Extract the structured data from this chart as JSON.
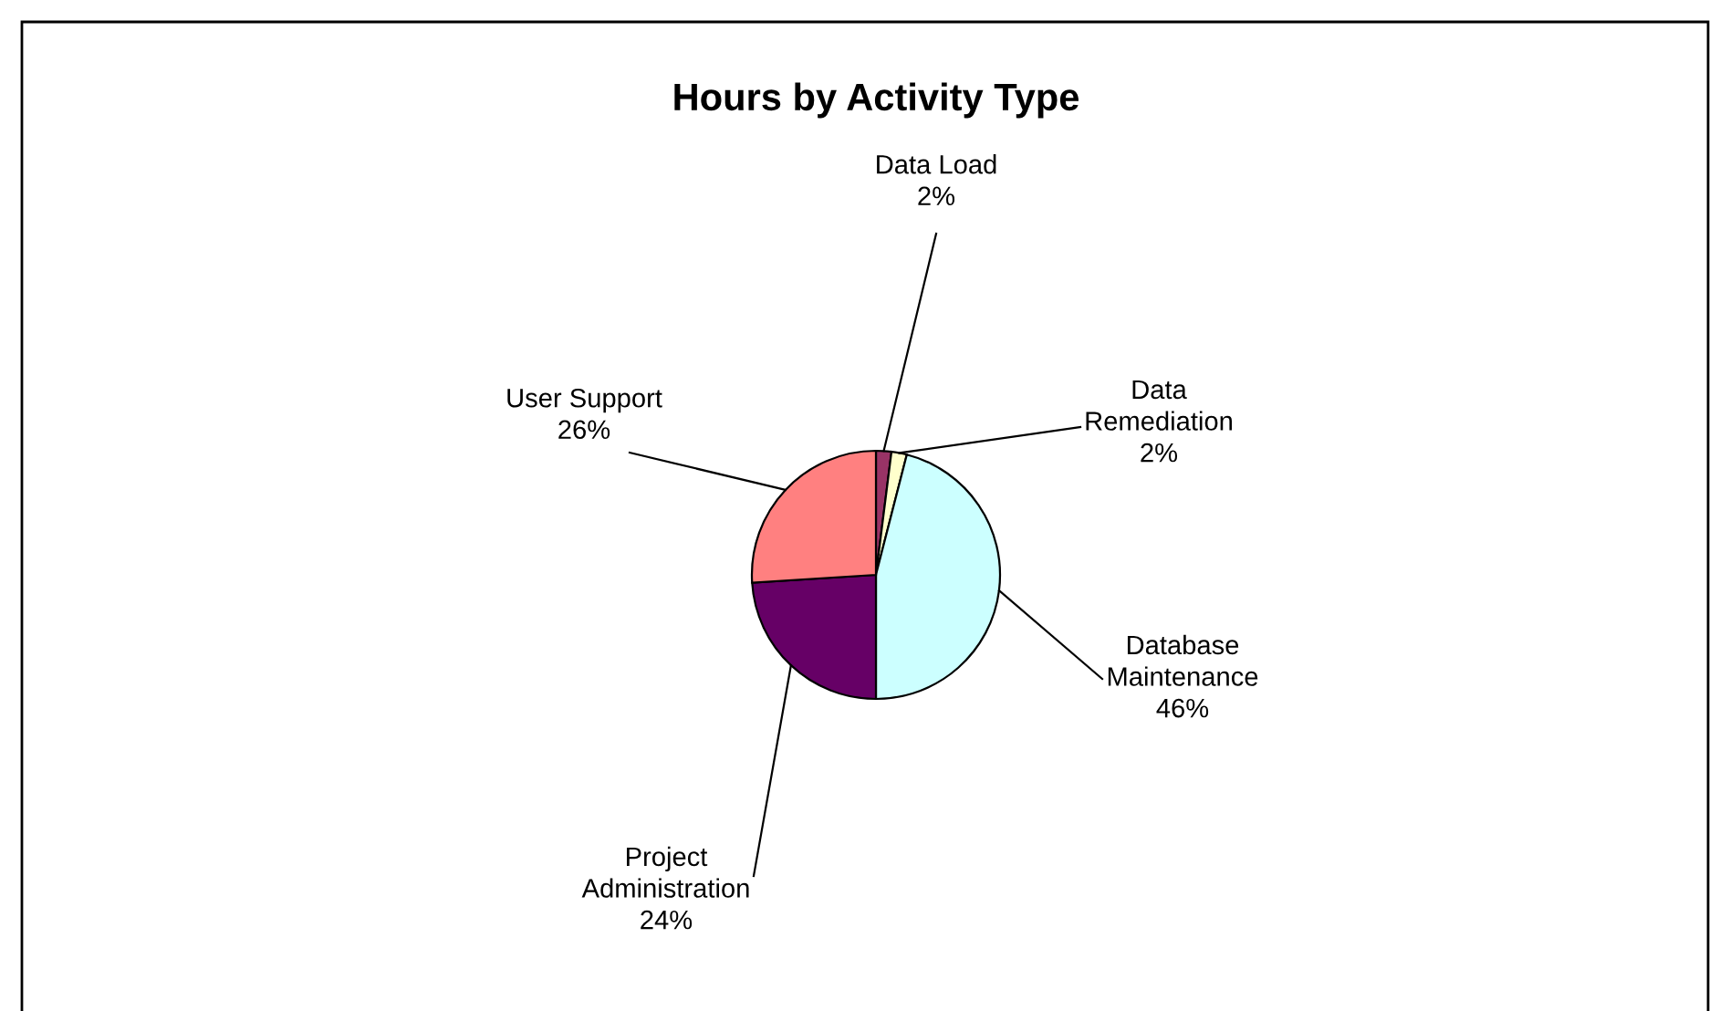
{
  "chart_data": {
    "type": "pie",
    "title": "Hours by Activity Type",
    "categories": [
      "Data Load",
      "Data Remediation",
      "Database Maintenance",
      "Project Administration",
      "User Support"
    ],
    "values": [
      2,
      2,
      46,
      24,
      26
    ],
    "colors": [
      "#993366",
      "#ffffcc",
      "#ccffff",
      "#660066",
      "#ff8080"
    ],
    "value_labels": [
      "2%",
      "2%",
      "46%",
      "24%",
      "26%"
    ],
    "legend": false
  }
}
